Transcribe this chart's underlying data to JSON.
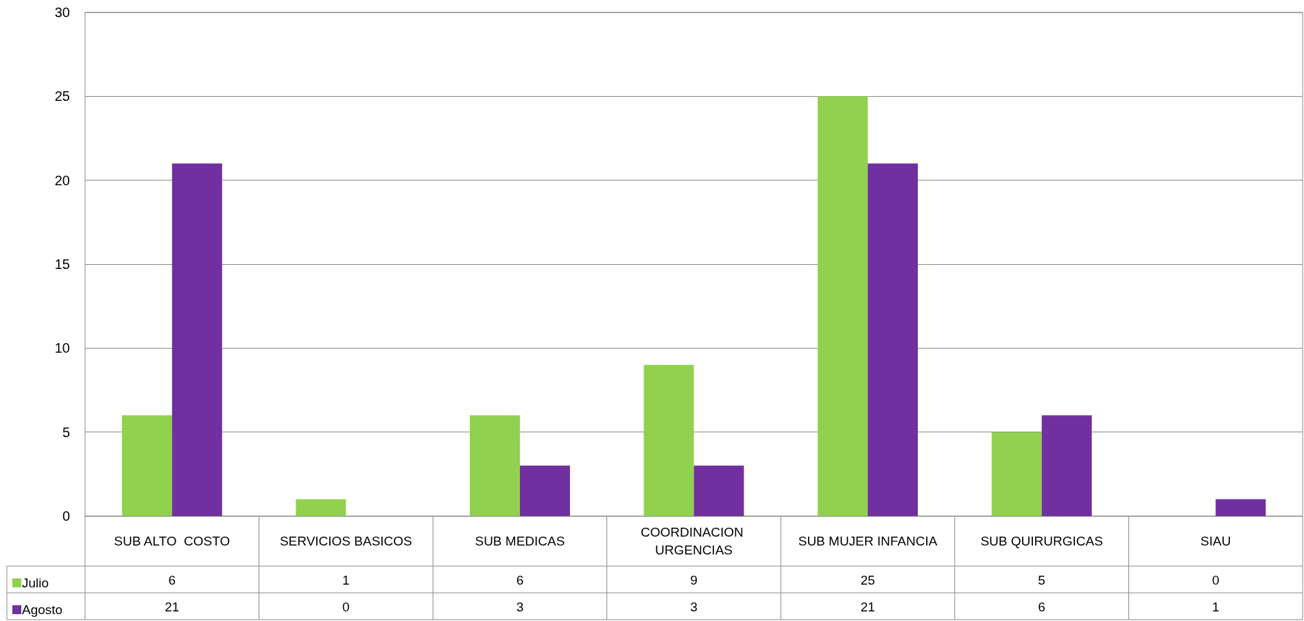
{
  "chart_data": {
    "type": "bar",
    "categories": [
      "SUB ALTO  COSTO",
      "SERVICIOS BASICOS",
      "SUB MEDICAS",
      "COORDINACION URGENCIAS",
      "SUB MUJER INFANCIA",
      "SUB QUIRURGICAS",
      "SIAU"
    ],
    "series": [
      {
        "name": "Julio",
        "color": "#92d050",
        "values": [
          6,
          1,
          6,
          9,
          25,
          5,
          0
        ]
      },
      {
        "name": "Agosto",
        "color": "#7030a0",
        "values": [
          21,
          0,
          3,
          3,
          21,
          6,
          1
        ]
      }
    ],
    "ylim": [
      0,
      30
    ],
    "yticks": [
      0,
      5,
      10,
      15,
      20,
      25,
      30
    ],
    "grid": "y",
    "legend": "bottom left",
    "data_labels": true
  }
}
